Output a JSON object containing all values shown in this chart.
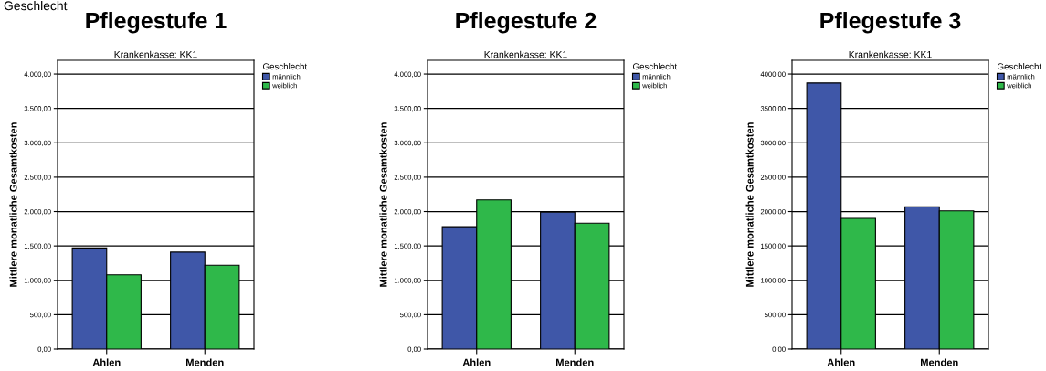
{
  "chart_data": [
    {
      "type": "bar",
      "title": "Pflegestufe 1",
      "subtitle": "Krankenkasse: KK1",
      "annotations": [
        "Geschlecht"
      ],
      "ylabel": "Mittlere monatliche Gesamtkosten",
      "legend_title": "Geschlecht",
      "categories": [
        "Ahlen",
        "Menden"
      ],
      "series": [
        {
          "name": "männlich",
          "color": "#3f57a8",
          "values": [
            1470,
            1410
          ]
        },
        {
          "name": "weiblich",
          "color": "#2fb84a",
          "values": [
            1080,
            1220
          ]
        }
      ],
      "ylim": [
        0,
        4200
      ],
      "yticks": [
        {
          "value": 0,
          "label": "0,00"
        },
        {
          "value": 500,
          "label": "500,00"
        },
        {
          "value": 1000,
          "label": "1.000,00"
        },
        {
          "value": 1500,
          "label": "1.500,00"
        },
        {
          "value": 2000,
          "label": "2.000,00"
        },
        {
          "value": 2500,
          "label": "2.500,00"
        },
        {
          "value": 3000,
          "label": "3.000,00"
        },
        {
          "value": 3500,
          "label": "3.500,00"
        },
        {
          "value": 4000,
          "label": "4.000,00"
        }
      ],
      "grid": "y",
      "legend": "top right"
    },
    {
      "type": "bar",
      "title": "Pflegestufe 2",
      "subtitle": "Krankenkasse: KK1",
      "ylabel": "Mittlere monatliche Gesamtkosten",
      "legend_title": "Geschlecht",
      "categories": [
        "Ahlen",
        "Menden"
      ],
      "series": [
        {
          "name": "männlich",
          "color": "#3f57a8",
          "values": [
            1780,
            1990
          ]
        },
        {
          "name": "weiblich",
          "color": "#2fb84a",
          "values": [
            2170,
            1830
          ]
        }
      ],
      "ylim": [
        0,
        4200
      ],
      "yticks": [
        {
          "value": 0,
          "label": "0,00"
        },
        {
          "value": 500,
          "label": "500,00"
        },
        {
          "value": 1000,
          "label": "1.000,00"
        },
        {
          "value": 1500,
          "label": "1.500,00"
        },
        {
          "value": 2000,
          "label": "2.000,00"
        },
        {
          "value": 2500,
          "label": "2.500,00"
        },
        {
          "value": 3000,
          "label": "3.000,00"
        },
        {
          "value": 3500,
          "label": "3.500,00"
        },
        {
          "value": 4000,
          "label": "4.000,00"
        }
      ],
      "grid": "y",
      "legend": "top right"
    },
    {
      "type": "bar",
      "title": "Pflegestufe 3",
      "subtitle": "Krankenkasse: KK1",
      "ylabel": "Mittlere monatliche Gesamtkosten",
      "legend_title": "Geschlecht",
      "categories": [
        "Ahlen",
        "Menden"
      ],
      "series": [
        {
          "name": "männlich",
          "color": "#3f57a8",
          "values": [
            3870,
            2070
          ]
        },
        {
          "name": "weiblich",
          "color": "#2fb84a",
          "values": [
            1900,
            2010
          ]
        }
      ],
      "ylim": [
        0,
        4200
      ],
      "yticks": [
        {
          "value": 0,
          "label": "0,00"
        },
        {
          "value": 500,
          "label": "500,00"
        },
        {
          "value": 1000,
          "label": "1000,00"
        },
        {
          "value": 1500,
          "label": "1500,00"
        },
        {
          "value": 2000,
          "label": "2000,00"
        },
        {
          "value": 2500,
          "label": "2500,00"
        },
        {
          "value": 3000,
          "label": "3000,00"
        },
        {
          "value": 3500,
          "label": "3500,00"
        },
        {
          "value": 4000,
          "label": "4000,00"
        }
      ],
      "grid": "y",
      "legend": "top right"
    }
  ]
}
